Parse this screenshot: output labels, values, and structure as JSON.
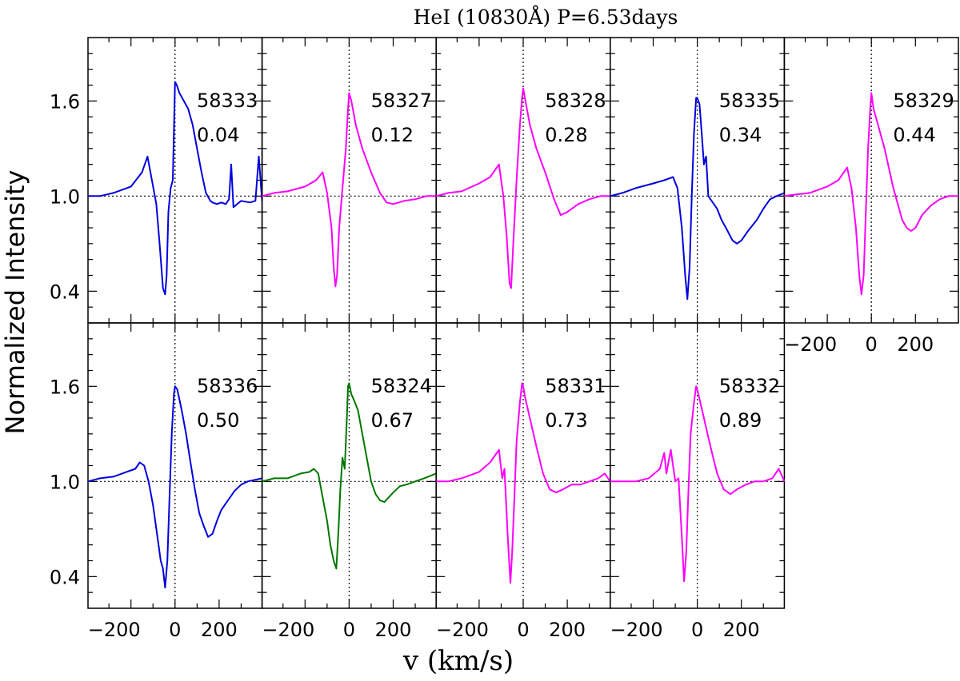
{
  "figure": {
    "title": "HeI (10830Å)   P=6.53days",
    "xlabel": "v (km/s)",
    "ylabel": "Normalized Intensity"
  },
  "chart_data": {
    "type": "line",
    "title": "HeI (10830Å)   P=6.53days",
    "xlabel": "v (km/s)",
    "ylabel": "Normalized Intensity",
    "xlim": [
      -395,
      395
    ],
    "ylim": [
      0.2,
      2.0
    ],
    "xticks": [
      -200,
      0,
      200
    ],
    "yticks": [
      0.4,
      1.0,
      1.6
    ],
    "reference_lines": {
      "x": 0,
      "y": 1.0
    },
    "layout": "2 rows x 5 columns",
    "panels": [
      {
        "id": "58333",
        "date": "58333",
        "phase": "0.04",
        "color": "#0000dd",
        "x": [
          -395,
          -340,
          -280,
          -200,
          -150,
          -125,
          -105,
          -85,
          -70,
          -55,
          -45,
          -38,
          -30,
          -20,
          -10,
          0,
          8,
          20,
          40,
          60,
          80,
          100,
          120,
          140,
          160,
          170,
          190,
          210,
          230,
          245,
          255,
          265,
          300,
          340,
          365,
          380,
          395
        ],
        "y": [
          1.0,
          1.0,
          1.02,
          1.06,
          1.15,
          1.25,
          1.1,
          0.95,
          0.7,
          0.42,
          0.38,
          0.5,
          0.9,
          1.05,
          1.1,
          1.72,
          1.7,
          1.65,
          1.6,
          1.55,
          1.45,
          1.3,
          1.15,
          1.02,
          0.97,
          0.96,
          0.95,
          0.96,
          0.95,
          0.98,
          1.2,
          0.93,
          0.97,
          0.96,
          0.97,
          1.25,
          0.97
        ]
      },
      {
        "id": "58327",
        "date": "58327",
        "phase": "0.12",
        "color": "#ff00ff",
        "x": [
          -395,
          -340,
          -280,
          -200,
          -150,
          -120,
          -100,
          -80,
          -70,
          -62,
          -55,
          -45,
          -30,
          -15,
          -5,
          0,
          10,
          30,
          60,
          100,
          140,
          170,
          200,
          250,
          300,
          350,
          395
        ],
        "y": [
          1.0,
          1.02,
          1.03,
          1.06,
          1.1,
          1.15,
          1.02,
          0.8,
          0.55,
          0.43,
          0.5,
          0.8,
          1.05,
          1.3,
          1.55,
          1.65,
          1.6,
          1.45,
          1.3,
          1.15,
          1.02,
          0.96,
          0.95,
          0.97,
          0.98,
          1.0,
          1.0
        ]
      },
      {
        "id": "58328",
        "date": "58328",
        "phase": "0.28",
        "color": "#ff00ff",
        "x": [
          -395,
          -340,
          -280,
          -200,
          -150,
          -110,
          -90,
          -75,
          -62,
          -55,
          -45,
          -30,
          -15,
          -5,
          0,
          10,
          30,
          60,
          100,
          140,
          170,
          200,
          250,
          300,
          350,
          395
        ],
        "y": [
          1.0,
          1.02,
          1.03,
          1.08,
          1.12,
          1.2,
          1.0,
          0.75,
          0.45,
          0.42,
          0.7,
          1.1,
          1.45,
          1.62,
          1.68,
          1.6,
          1.45,
          1.3,
          1.15,
          0.98,
          0.88,
          0.9,
          0.95,
          0.98,
          1.0,
          1.0
        ]
      },
      {
        "id": "58335",
        "date": "58335",
        "phase": "0.34",
        "color": "#0000dd",
        "x": [
          -395,
          -340,
          -280,
          -200,
          -150,
          -110,
          -90,
          -70,
          -55,
          -45,
          -35,
          -25,
          -15,
          -5,
          0,
          10,
          20,
          30,
          40,
          50,
          60,
          70,
          90,
          110,
          130,
          160,
          180,
          200,
          230,
          270,
          300,
          330,
          360,
          395
        ],
        "y": [
          1.0,
          1.02,
          1.05,
          1.08,
          1.1,
          1.12,
          1.05,
          0.8,
          0.5,
          0.35,
          0.55,
          1.0,
          1.4,
          1.62,
          1.62,
          1.58,
          1.4,
          1.2,
          1.25,
          1.0,
          0.98,
          0.96,
          0.92,
          0.85,
          0.8,
          0.72,
          0.7,
          0.72,
          0.78,
          0.85,
          0.92,
          0.98,
          1.0,
          1.02
        ]
      },
      {
        "id": "58329",
        "date": "58329",
        "phase": "0.44",
        "color": "#ff00ff",
        "x": [
          -395,
          -340,
          -280,
          -200,
          -150,
          -110,
          -90,
          -70,
          -55,
          -45,
          -35,
          -25,
          -15,
          -5,
          0,
          10,
          30,
          60,
          100,
          140,
          160,
          180,
          200,
          230,
          270,
          310,
          350,
          395
        ],
        "y": [
          1.0,
          1.01,
          1.02,
          1.06,
          1.1,
          1.18,
          1.05,
          0.8,
          0.5,
          0.38,
          0.5,
          0.9,
          1.3,
          1.55,
          1.65,
          1.55,
          1.45,
          1.3,
          1.05,
          0.85,
          0.8,
          0.78,
          0.8,
          0.88,
          0.94,
          0.98,
          1.0,
          1.0
        ]
      },
      {
        "id": "58336",
        "date": "58336",
        "phase": "0.50",
        "color": "#0000dd",
        "x": [
          -395,
          -340,
          -280,
          -220,
          -180,
          -160,
          -140,
          -120,
          -100,
          -80,
          -65,
          -55,
          -45,
          -35,
          -25,
          -15,
          -5,
          0,
          10,
          30,
          50,
          70,
          90,
          110,
          130,
          150,
          170,
          190,
          210,
          240,
          270,
          300,
          330,
          395
        ],
        "y": [
          1.0,
          1.02,
          1.03,
          1.06,
          1.08,
          1.12,
          1.1,
          1.0,
          0.85,
          0.65,
          0.5,
          0.45,
          0.33,
          0.5,
          0.9,
          1.3,
          1.55,
          1.6,
          1.58,
          1.45,
          1.3,
          1.12,
          0.95,
          0.8,
          0.72,
          0.65,
          0.67,
          0.75,
          0.82,
          0.88,
          0.94,
          0.98,
          1.0,
          1.02
        ]
      },
      {
        "id": "58324",
        "date": "58324",
        "phase": "0.67",
        "color": "#007700",
        "x": [
          -395,
          -340,
          -280,
          -220,
          -180,
          -160,
          -140,
          -120,
          -100,
          -85,
          -70,
          -58,
          -48,
          -40,
          -30,
          -20,
          -10,
          -5,
          0,
          10,
          20,
          40,
          60,
          80,
          100,
          120,
          140,
          160,
          180,
          200,
          230,
          260,
          300,
          340,
          395
        ],
        "y": [
          1.0,
          1.02,
          1.02,
          1.05,
          1.06,
          1.08,
          1.05,
          0.9,
          0.75,
          0.6,
          0.5,
          0.45,
          0.7,
          0.95,
          1.15,
          1.08,
          1.4,
          1.6,
          1.62,
          1.55,
          1.52,
          1.45,
          1.3,
          1.15,
          1.0,
          0.92,
          0.88,
          0.87,
          0.9,
          0.93,
          0.97,
          0.98,
          1.0,
          1.02,
          1.05
        ]
      },
      {
        "id": "58331",
        "date": "58331",
        "phase": "0.73",
        "color": "#ff00ff",
        "x": [
          -395,
          -340,
          -280,
          -200,
          -150,
          -110,
          -95,
          -85,
          -70,
          -58,
          -50,
          -40,
          -30,
          -15,
          -5,
          0,
          10,
          30,
          60,
          90,
          120,
          150,
          180,
          220,
          260,
          300,
          340,
          370,
          395
        ],
        "y": [
          1.0,
          1.0,
          1.02,
          1.06,
          1.12,
          1.2,
          1.02,
          1.08,
          0.65,
          0.36,
          0.55,
          0.9,
          1.25,
          1.5,
          1.62,
          1.6,
          1.52,
          1.4,
          1.22,
          1.05,
          0.95,
          0.93,
          0.95,
          0.98,
          0.98,
          1.0,
          1.02,
          1.05,
          1.0
        ]
      },
      {
        "id": "58332",
        "date": "58332",
        "phase": "0.89",
        "color": "#ff00ff",
        "x": [
          -395,
          -340,
          -280,
          -220,
          -170,
          -150,
          -140,
          -120,
          -100,
          -85,
          -70,
          -60,
          -50,
          -40,
          -30,
          -15,
          -5,
          0,
          10,
          30,
          60,
          90,
          120,
          150,
          180,
          220,
          260,
          300,
          340,
          370,
          395
        ],
        "y": [
          1.0,
          1.0,
          1.0,
          1.02,
          1.08,
          1.18,
          1.05,
          1.2,
          1.0,
          1.02,
          0.65,
          0.37,
          0.55,
          0.95,
          1.3,
          1.5,
          1.6,
          1.58,
          1.52,
          1.4,
          1.22,
          1.05,
          0.95,
          0.92,
          0.95,
          0.98,
          1.0,
          1.0,
          1.02,
          1.08,
          1.0
        ]
      }
    ]
  }
}
